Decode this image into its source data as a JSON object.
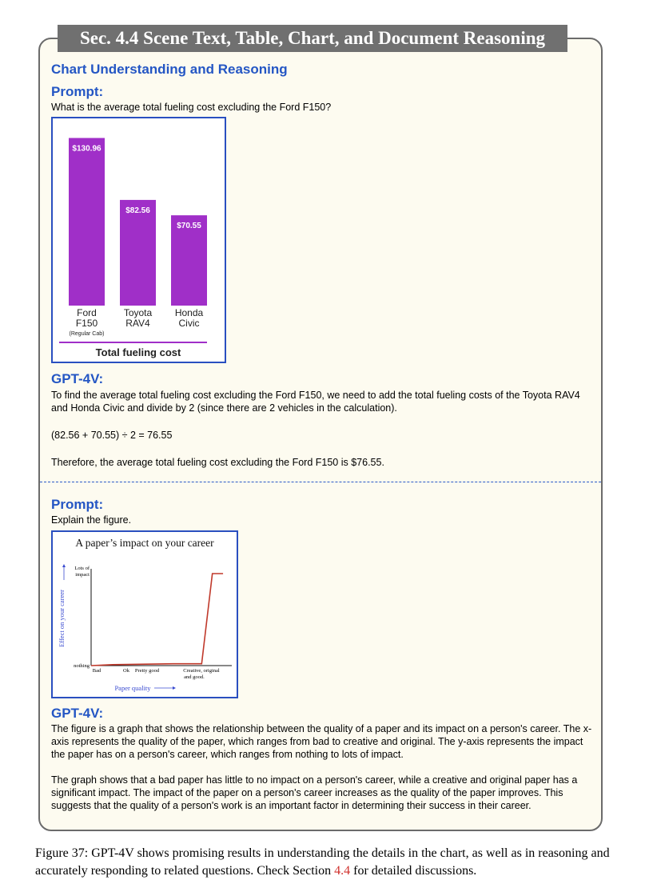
{
  "section_title": "Sec. 4.4 Scene Text, Table, Chart, and Document Reasoning",
  "subtitle": "Chart Understanding and Reasoning",
  "example1": {
    "prompt_label": "Prompt:",
    "prompt_text": "What is the average total fueling cost excluding the Ford F150?",
    "response_label": "GPT-4V:",
    "response_p1": "To find the average total fueling cost excluding the Ford F150, we need to add the total fueling costs of the Toyota RAV4 and Honda Civic and divide by 2 (since there are 2 vehicles in the calculation).",
    "response_p2": "(82.56 + 70.55) ÷ 2 = 76.55",
    "response_p3": "Therefore, the average total fueling cost excluding the Ford F150 is $76.55."
  },
  "chart1": {
    "chart_data": {
      "type": "bar",
      "categories": [
        "Ford F150 (Regular Cab)",
        "Toyota RAV4",
        "Honda Civic"
      ],
      "values": [
        130.96,
        82.56,
        70.55
      ],
      "value_labels": [
        "$130.96",
        "$82.56",
        "$70.55"
      ],
      "category_lines": [
        [
          "Ford",
          "F150",
          "(Regular Cab)"
        ],
        [
          "Toyota",
          "RAV4"
        ],
        [
          "Honda",
          "Civic"
        ]
      ],
      "title": "Total fueling cost",
      "ylim": [
        0,
        140
      ],
      "bar_color": "#a02fc8"
    }
  },
  "example2": {
    "prompt_label": "Prompt:",
    "prompt_text": "Explain the figure.",
    "response_label": "GPT-4V:",
    "response_p1": "The figure is a graph that shows the relationship between the quality of a paper and its impact on a person's career. The x-axis represents the quality of the paper, which ranges from bad to creative and original. The y-axis represents the impact the paper has on a person's career, which ranges from nothing to lots of impact.",
    "response_p2": "The graph shows that a bad paper has little to no impact on a person's career, while a creative and original paper has a significant impact. The impact of the paper on a person's career increases as the quality of the paper improves. This suggests that the quality of a person's work is an important factor in determining their success in their career."
  },
  "chart2": {
    "chart_data": {
      "type": "line",
      "title": "A paper’s impact on your career",
      "xlabel": "Paper quality",
      "ylabel": "Effect on your career",
      "x_ticks": [
        "Bad",
        "Ok",
        "Pretty good",
        "Creative, original and good."
      ],
      "y_ticks": [
        "nothing",
        "Lots of impact"
      ],
      "series": [
        {
          "x": [
            0,
            0.6,
            2.3,
            3.1,
            3.4,
            3.7
          ],
          "y": [
            0,
            0.01,
            0.02,
            0.02,
            1,
            1
          ]
        }
      ],
      "xlim": [
        0,
        3.9
      ],
      "ylim": [
        0,
        1
      ],
      "line_color": "#c0392b"
    }
  },
  "caption": {
    "part1": "Figure 37: GPT-4V shows promising results in understanding the details in the chart, as well as in reasoning and accurately responding to related questions. Check Section ",
    "ref": "4.4",
    "part2": " for detailed discussions."
  }
}
